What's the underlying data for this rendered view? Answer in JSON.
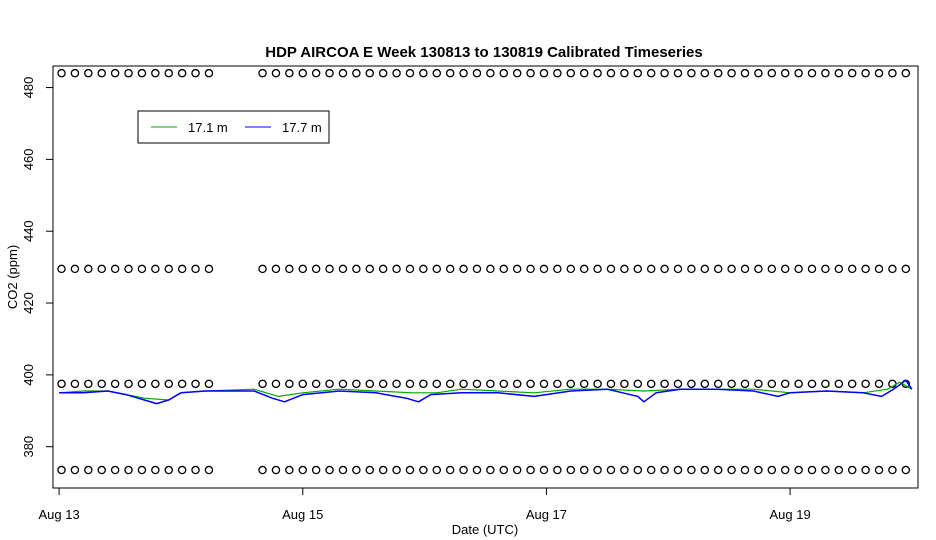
{
  "chart_data": {
    "type": "scatter",
    "title": "HDP AIRCOA E  Week 130813 to 130819  Calibrated Timeseries",
    "xlabel": "Date (UTC)",
    "ylabel": "CO2 (ppm)",
    "xlim": [
      -0.05,
      7.05
    ],
    "ylim": [
      368.5,
      486
    ],
    "x_ticks": [
      {
        "value": 0,
        "label": "Aug 13"
      },
      {
        "value": 2,
        "label": "Aug 15"
      },
      {
        "value": 4,
        "label": "Aug 17"
      },
      {
        "value": 6,
        "label": "Aug 19"
      }
    ],
    "y_ticks": [
      {
        "value": 380,
        "label": "380"
      },
      {
        "value": 400,
        "label": "400"
      },
      {
        "value": 420,
        "label": "420"
      },
      {
        "value": 440,
        "label": "440"
      },
      {
        "value": 460,
        "label": "460"
      },
      {
        "value": 480,
        "label": "480"
      }
    ],
    "legend": {
      "position": "top-left",
      "entries": [
        {
          "label": "17.1 m",
          "color": "#00aa00"
        },
        {
          "label": "17.7 m",
          "color": "#0000ff"
        }
      ]
    },
    "calibration_levels": [
      373.5,
      397.5,
      429.5,
      484
    ],
    "calibration_gap": [
      1.28,
      1.57
    ],
    "calibration_interval": 0.11,
    "series": [
      {
        "name": "17.1 m",
        "color": "#00aa00",
        "x": [
          0,
          0.2,
          0.4,
          0.55,
          0.7,
          0.9,
          1.0,
          1.2,
          1.6,
          1.8,
          2.0,
          2.3,
          2.6,
          2.9,
          3.1,
          3.3,
          3.6,
          3.9,
          4.2,
          4.5,
          4.8,
          5.1,
          5.4,
          5.7,
          6.0,
          6.3,
          6.6,
          6.8,
          6.9,
          7.0
        ],
        "y": [
          395,
          395.5,
          395.5,
          394.5,
          393.5,
          393,
          395,
          395.5,
          396,
          394,
          395,
          396,
          395.5,
          395,
          395,
          396,
          395.5,
          395,
          396,
          396,
          395.5,
          396,
          396,
          396,
          395,
          395.5,
          395,
          396,
          398,
          396
        ]
      },
      {
        "name": "17.7 m",
        "color": "#0000ff",
        "x": [
          0,
          0.2,
          0.4,
          0.55,
          0.7,
          0.8,
          0.9,
          1.0,
          1.2,
          1.6,
          1.75,
          1.85,
          2.0,
          2.3,
          2.6,
          2.85,
          2.95,
          3.05,
          3.3,
          3.6,
          3.9,
          4.2,
          4.5,
          4.75,
          4.8,
          4.9,
          5.1,
          5.4,
          5.7,
          5.9,
          6.0,
          6.3,
          6.6,
          6.75,
          6.85,
          6.95,
          7.0
        ],
        "y": [
          395,
          395,
          395.5,
          394.5,
          393,
          392,
          393,
          395,
          395.5,
          395.5,
          393.5,
          392.5,
          394.5,
          395.5,
          395,
          393.5,
          392.5,
          394.5,
          395,
          395,
          394,
          395.5,
          396,
          394,
          392.5,
          395,
          396,
          396,
          395.5,
          394,
          395,
          395.5,
          395,
          394,
          396,
          398.5,
          396
        ]
      }
    ]
  }
}
